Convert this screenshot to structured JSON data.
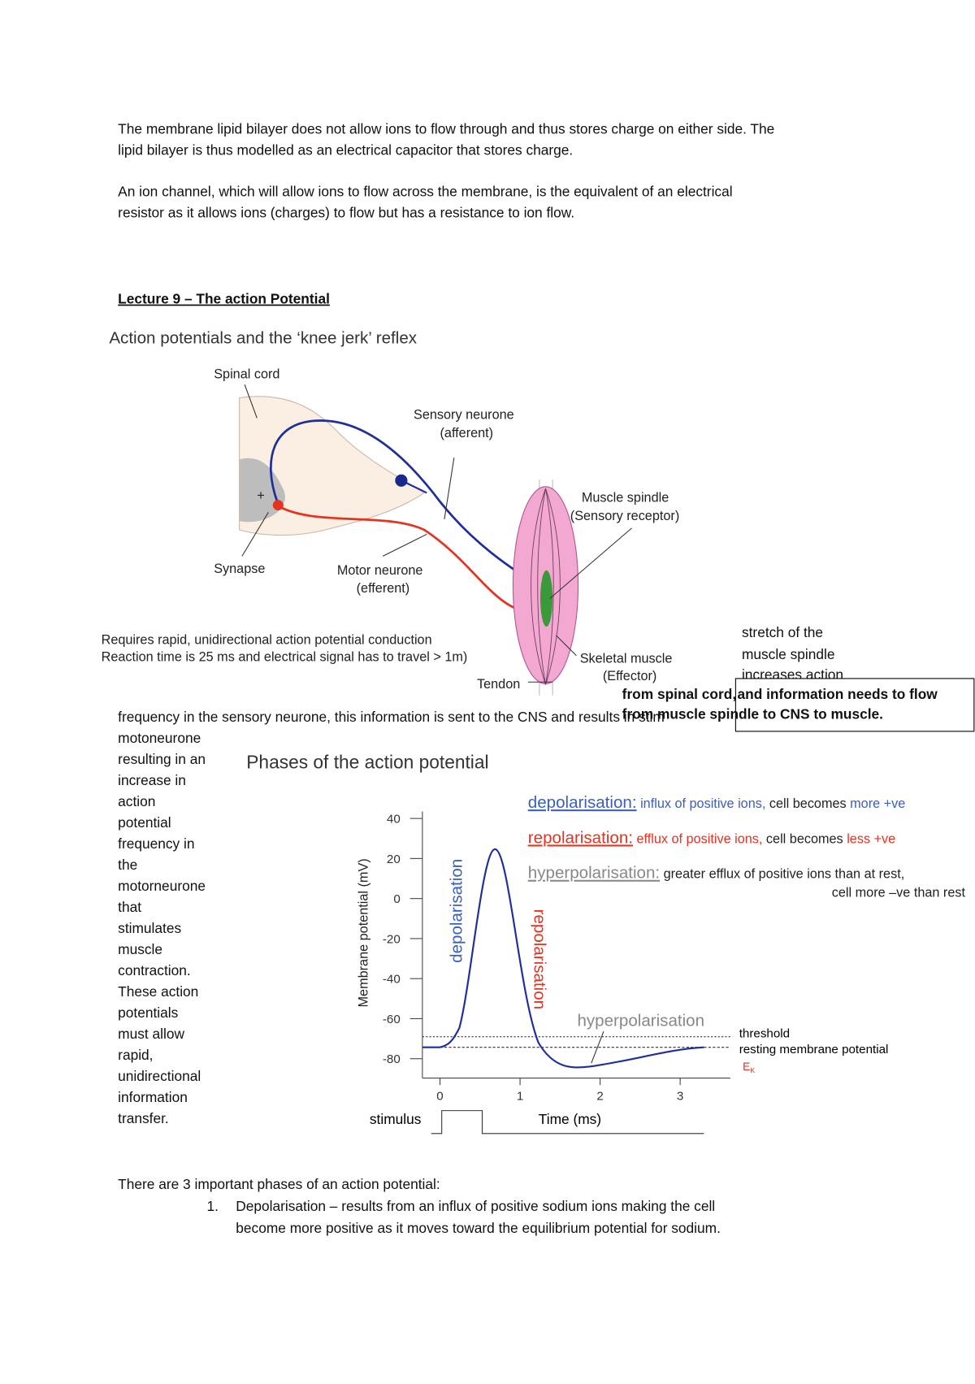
{
  "body": {
    "paragraph_1": [
      "The membrane lipid bilayer does not allow ions to flow through and thus stores charge on either side. The",
      "lipid bilayer is thus modelled as an electrical capacitor that stores charge."
    ],
    "paragraph_2": [
      "An ion channel, which will allow ions to flow across the membrane, is the equivalent of an electrical",
      "resistor as it allows ions (charges) to flow but has a resistance to ion flow."
    ]
  },
  "heading": "Lecture 9 – The action Potential",
  "figure_1": {
    "title": "Action potentials and the ‘knee jerk’ reflex",
    "spinal_cord": "Spinal cord",
    "sensory_neurone": [
      "Sensory neurone",
      "(afferent)"
    ],
    "muscle_spindle": [
      "Muscle spindle",
      "(Sensory receptor)"
    ],
    "synapse": "Synapse",
    "synapse_sign": "+",
    "motor_neurone": [
      "Motor neurone",
      "(efferent)"
    ],
    "caption": [
      "Requires rapid, unidirectional action potential conduction",
      "Reaction time is 25 ms and electrical signal has to travel > 1m)"
    ],
    "skeletal_muscle": [
      "Skeletal muscle",
      "(Effector)"
    ],
    "tendon": "Tendon"
  },
  "side_note": [
    "stretch of the",
    "muscle spindle",
    "increases action"
  ],
  "text_box": [
    "from spinal cord,",
    "and information needs to flow",
    "from muscle spindle to CNS to muscle."
  ],
  "continuation": "frequency in the sensory neurone, this information is sent to the CNS and results in stim",
  "column_text": [
    "motoneurone",
    "resulting in an",
    "increase in",
    "action",
    "potential",
    "frequency in",
    "the",
    "motorneurone",
    "that",
    "stimulates",
    "muscle",
    "contraction.",
    "These action",
    "potentials",
    "must allow",
    "rapid,",
    "unidirectional",
    "information",
    "transfer."
  ],
  "figure_2": {
    "title": "Phases of the action potential",
    "y_axis_label": "Membrane potential (mV)",
    "y_ticks": [
      "40",
      "20",
      "0",
      "-20",
      "-40",
      "-60",
      "-80"
    ],
    "x_ticks": [
      "0",
      "1",
      "2",
      "3"
    ],
    "x_axis_label": "Time (ms)",
    "stimulus": "stimulus",
    "curve_labels": {
      "depolarisation": "depolarisation",
      "repolarisation": "repolarisation",
      "hyperpolarisation": "hyperpolarisation"
    },
    "lines": {
      "threshold": "threshold",
      "resting": "resting membrane potential",
      "ek": "E",
      "ek_sub": "K"
    },
    "legend": {
      "depolarisation": [
        "depolarisation:",
        " influx of positive ions,",
        " cell becomes",
        " more +ve"
      ],
      "repolarisation": [
        "repolarisation:",
        " efflux of positive ions,",
        " cell becomes",
        " less +ve"
      ],
      "hyperpolarisation": [
        "hyperpolarisation:",
        " greater efflux of positive ions than at rest,",
        "cell more –ve than rest"
      ]
    }
  },
  "phases": {
    "intro": "There are 3 important phases of an action potential:",
    "item_1": {
      "number": "1.",
      "lines": [
        "Depolarisation – results from an influx of positive sodium ions making the cell",
        "become more positive as it moves toward the equilibrium potential for sodium."
      ]
    }
  }
}
